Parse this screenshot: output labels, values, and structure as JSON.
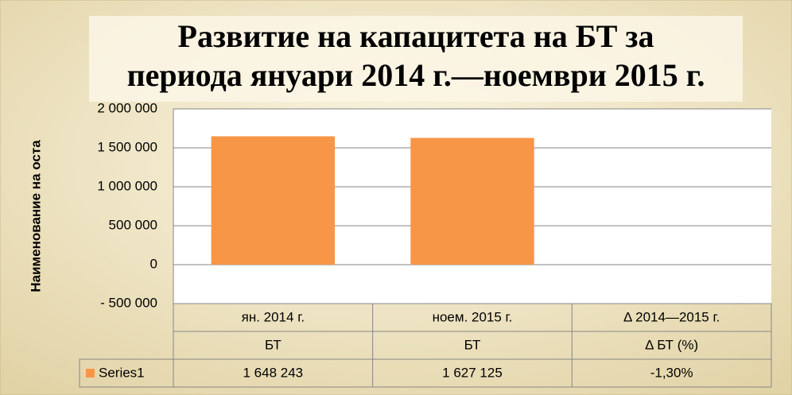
{
  "chart_data": {
    "type": "bar",
    "title_lines": [
      "Развитие на капацитета на БТ за",
      "периода януари 2014 г.—ноември 2015 г."
    ],
    "y_label": "Наименование на оста",
    "categories": [
      "ян. 2014 г.",
      "ноем. 2015 г.",
      "Δ 2014—2015 г."
    ],
    "subcategories": [
      "БТ",
      "БТ",
      "Δ БТ (%)"
    ],
    "series": [
      {
        "name": "Series1",
        "color": "#f79646",
        "values": [
          1648243,
          1627125,
          -1.3
        ],
        "value_labels": [
          "1 648 243",
          "1 627 125",
          "-1,30%"
        ]
      }
    ],
    "ylim": [
      -500000,
      2000000
    ],
    "yticks": [
      {
        "value": -500000,
        "label": "- 500 000"
      },
      0,
      {
        "value": 500000,
        "label": "500 000"
      },
      {
        "value": 1000000,
        "label": "1 000 000"
      },
      {
        "value": 1500000,
        "label": "1 500 000"
      },
      {
        "value": 2000000,
        "label": "2 000 000"
      }
    ],
    "grid": true
  }
}
